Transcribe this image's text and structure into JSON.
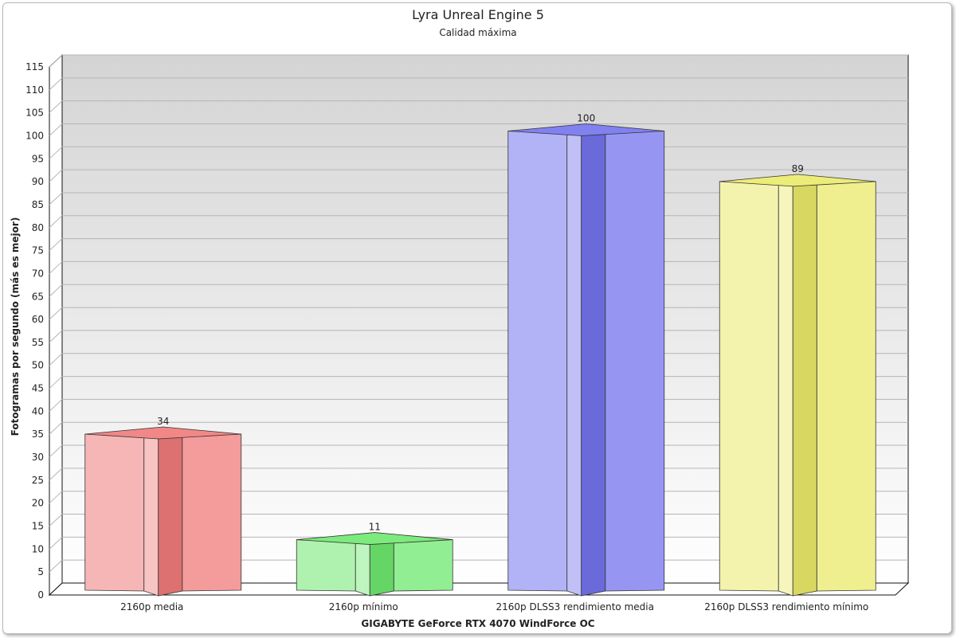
{
  "chart_data": {
    "type": "bar",
    "title": "Lyra Unreal Engine 5",
    "subtitle": "Calidad máxima",
    "xlabel": "GIGABYTE GeForce RTX 4070 WindForce OC",
    "ylabel": "Fotogramas por segundo (más es mejor)",
    "ylim": [
      0,
      115
    ],
    "ytick_step": 5,
    "grid": true,
    "categories": [
      "2160p media",
      "2160p mínimo",
      "2160p DLSS3 rendimiento media",
      "2160p DLSS3 rendimiento mínimo"
    ],
    "values": [
      34,
      11,
      100,
      89
    ],
    "colors": [
      "#f07a7a",
      "#6ee86e",
      "#7373ee",
      "#eaea6a"
    ]
  }
}
